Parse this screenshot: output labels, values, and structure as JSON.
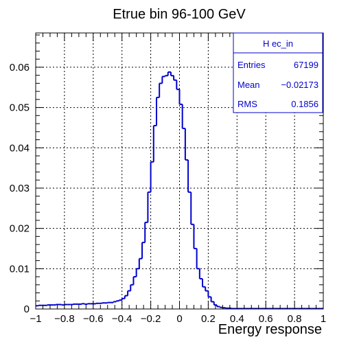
{
  "chart_data": {
    "type": "histogram",
    "title": "Etrue bin 96-100 GeV",
    "xlabel": "Energy response",
    "ylabel": "",
    "xlim": [
      -1,
      1
    ],
    "ylim": [
      0,
      0.0685
    ],
    "grid": true,
    "x_ticks": [
      -1,
      -0.8,
      -0.6,
      -0.4,
      -0.2,
      0,
      0.2,
      0.4,
      0.6,
      0.8,
      1
    ],
    "x_tick_labels": [
      "−1",
      "−0.8",
      "−0.6",
      "−0.4",
      "−0.2",
      "0",
      "0.2",
      "0.4",
      "0.6",
      "0.8",
      "1"
    ],
    "y_ticks": [
      0,
      0.01,
      0.02,
      0.03,
      0.04,
      0.05,
      0.06
    ],
    "y_tick_labels": [
      "0",
      "0.01",
      "0.02",
      "0.03",
      "0.04",
      "0.05",
      "0.06"
    ],
    "bin_edges_range": [
      -1,
      1
    ],
    "bin_width": 0.02,
    "line_color": "#0000cc",
    "values": [
      0.0008,
      0.0009,
      0.0009,
      0.0009,
      0.001,
      0.001,
      0.001,
      0.0011,
      0.0011,
      0.001,
      0.0011,
      0.0011,
      0.0011,
      0.0012,
      0.0012,
      0.0012,
      0.0013,
      0.0012,
      0.0013,
      0.0013,
      0.0013,
      0.0014,
      0.0014,
      0.0015,
      0.0015,
      0.0016,
      0.0016,
      0.0018,
      0.002,
      0.0022,
      0.0026,
      0.0033,
      0.0045,
      0.006,
      0.008,
      0.01,
      0.0125,
      0.0165,
      0.0215,
      0.029,
      0.0365,
      0.0455,
      0.0525,
      0.056,
      0.0577,
      0.0579,
      0.0588,
      0.0579,
      0.0568,
      0.0545,
      0.0508,
      0.0448,
      0.037,
      0.029,
      0.021,
      0.015,
      0.01,
      0.0075,
      0.0055,
      0.0045,
      0.003,
      0.0018,
      0.001,
      0.0006,
      0.0004,
      0.0003,
      0.0002,
      0.0002,
      0.0001,
      0.0001,
      0.0001,
      0.0001,
      0.0001,
      0.0001,
      0.0001,
      0.0001,
      0.0001,
      0.0001,
      0.0001,
      0.0001,
      0.0001,
      0.0001,
      0.0001,
      0.0001,
      0.0001,
      0.0001,
      0.0001,
      0.0001,
      0.0001,
      0.0001,
      0.0001,
      0.0001,
      0.0001,
      0.0001,
      0.0001,
      0.0001,
      0.0001,
      0.0001,
      0.0001,
      0.0001
    ],
    "stats_box": {
      "title": "H ec_in",
      "rows": [
        {
          "label": "Entries",
          "value": "67199"
        },
        {
          "label": "Mean",
          "value": "−0.02173"
        },
        {
          "label": "RMS",
          "value": "0.1856"
        }
      ]
    }
  }
}
